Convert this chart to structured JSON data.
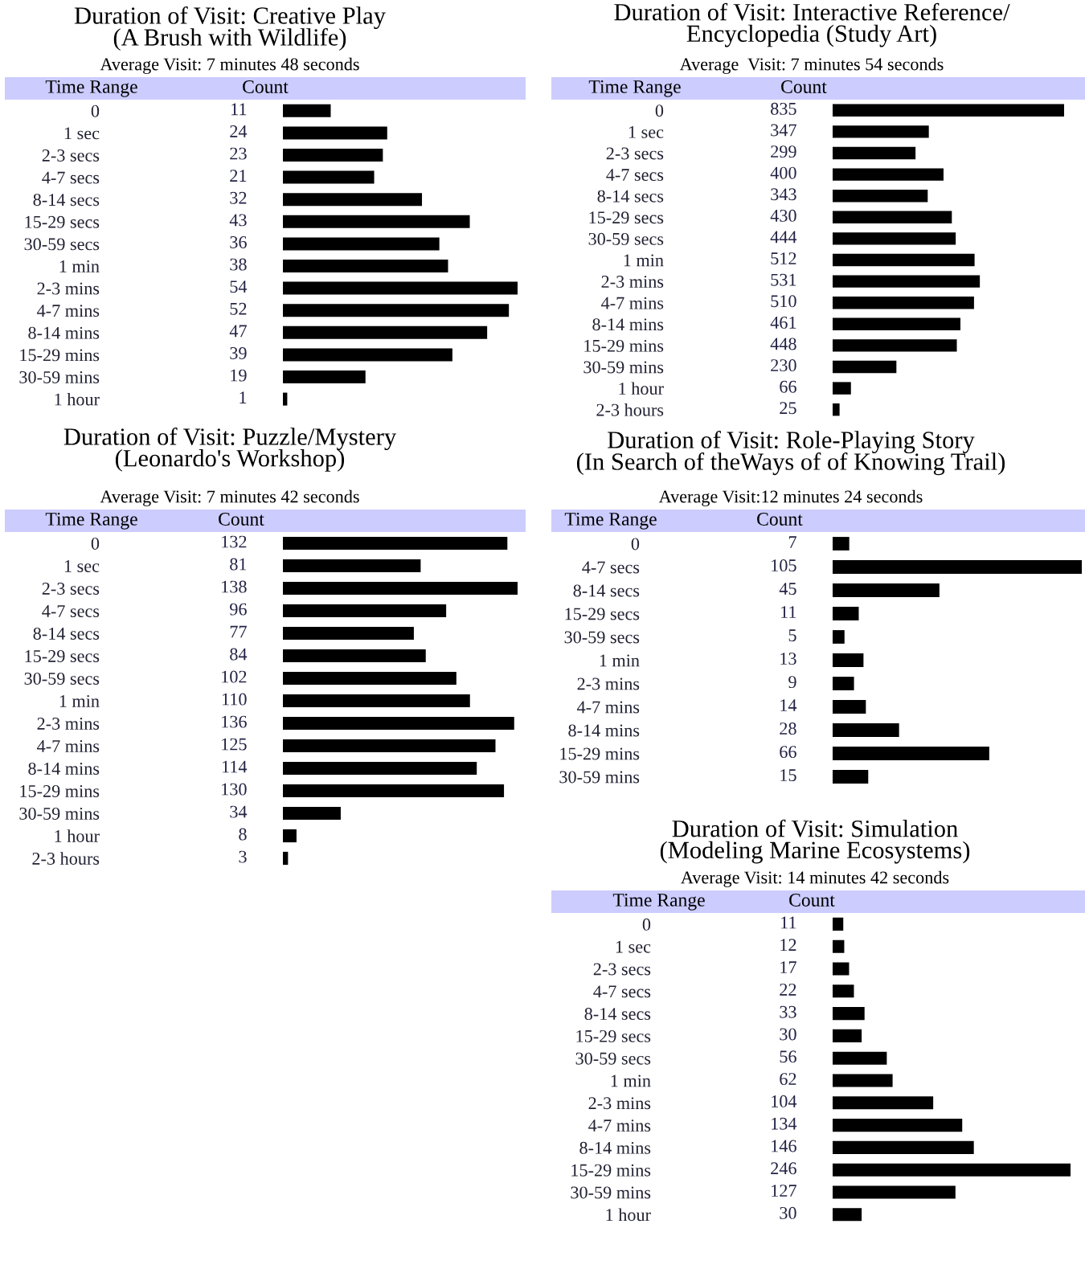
{
  "chart_data": [
    {
      "type": "bar",
      "orientation": "horizontal",
      "title": "Duration of Visit: Creative Play\n(A Brush with Wildlife)",
      "subtitle": "Average Visit: 7 minutes 48 seconds",
      "ylabel": "Time Range",
      "xlabel": "Count",
      "color": "#000000",
      "data_labels": true,
      "categories": [
        "0",
        "1 sec",
        "2-3 secs",
        "4-7 secs",
        "8-14 secs",
        "15-29 secs",
        "30-59 secs",
        "1 min",
        "2-3 mins",
        "4-7 mins",
        "8-14 mins",
        "15-29 mins",
        "30-59 mins",
        "1 hour"
      ],
      "values": [
        11,
        24,
        23,
        21,
        32,
        43,
        36,
        38,
        54,
        52,
        47,
        39,
        19,
        1
      ]
    },
    {
      "type": "bar",
      "orientation": "horizontal",
      "title": "Duration of Visit: Interactive Reference/\nEncyclopedia (Study Art)",
      "subtitle": "Average  Visit: 7 minutes 54 seconds",
      "ylabel": "Time Range",
      "xlabel": "Count",
      "color": "#000000",
      "data_labels": true,
      "categories": [
        "0",
        "1 sec",
        "2-3 secs",
        "4-7 secs",
        "8-14 secs",
        "15-29 secs",
        "30-59 secs",
        "1 min",
        "2-3 mins",
        "4-7 mins",
        "8-14 mins",
        "15-29 mins",
        "30-59 mins",
        "1 hour",
        "2-3 hours"
      ],
      "values": [
        835,
        347,
        299,
        400,
        343,
        430,
        444,
        512,
        531,
        510,
        461,
        448,
        230,
        66,
        25
      ]
    },
    {
      "type": "bar",
      "orientation": "horizontal",
      "title": "Duration of Visit: Puzzle/Mystery\n(Leonardo's Workshop)",
      "subtitle": "Average Visit: 7 minutes 42 seconds",
      "ylabel": "Time Range",
      "xlabel": "Count",
      "color": "#000000",
      "data_labels": true,
      "categories": [
        "0",
        "1 sec",
        "2-3 secs",
        "4-7 secs",
        "8-14 secs",
        "15-29 secs",
        "30-59 secs",
        "1 min",
        "2-3 mins",
        "4-7 mins",
        "8-14 mins",
        "15-29 mins",
        "30-59 mins",
        "1 hour",
        "2-3 hours"
      ],
      "values": [
        132,
        81,
        138,
        96,
        77,
        84,
        102,
        110,
        136,
        125,
        114,
        130,
        34,
        8,
        3
      ]
    },
    {
      "type": "bar",
      "orientation": "horizontal",
      "title": "Duration of Visit: Role-Playing Story\n(In Search of theWays of of Knowing Trail)",
      "subtitle": "Average Visit:12 minutes 24 seconds",
      "ylabel": "Time Range",
      "xlabel": "Count",
      "color": "#000000",
      "data_labels": true,
      "categories": [
        "0",
        "4-7 secs",
        "8-14 secs",
        "15-29 secs",
        "30-59 secs",
        "1 min",
        "2-3 mins",
        "4-7 mins",
        "8-14 mins",
        "15-29 mins",
        "30-59 mins"
      ],
      "values": [
        7,
        105,
        45,
        11,
        5,
        13,
        9,
        14,
        28,
        66,
        15
      ]
    },
    {
      "type": "bar",
      "orientation": "horizontal",
      "title": "Duration of Visit: Simulation\n(Modeling Marine Ecosystems)",
      "subtitle": "Average Visit: 14 minutes 42 seconds",
      "ylabel": "Time Range",
      "xlabel": "Count",
      "color": "#000000",
      "data_labels": true,
      "categories": [
        "0",
        "1 sec",
        "2-3 secs",
        "4-7 secs",
        "8-14 secs",
        "15-29 secs",
        "30-59 secs",
        "1 min",
        "2-3 mins",
        "4-7 mins",
        "8-14 mins",
        "15-29 mins",
        "30-59 mins",
        "1 hour"
      ],
      "values": [
        11,
        12,
        17,
        22,
        33,
        30,
        56,
        62,
        104,
        134,
        146,
        246,
        127,
        30
      ]
    }
  ]
}
